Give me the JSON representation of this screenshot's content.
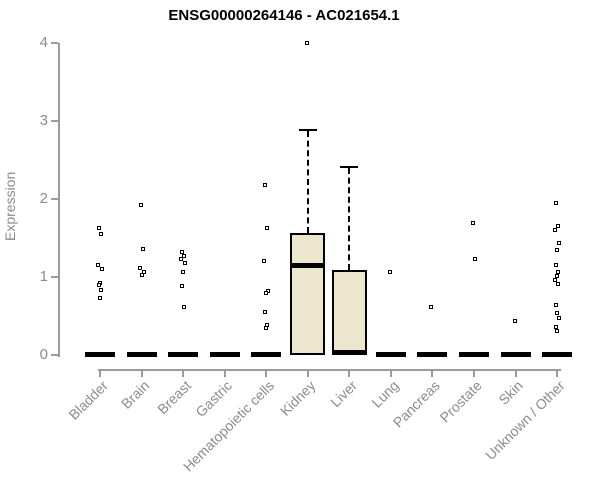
{
  "chart_data": {
    "type": "boxplot",
    "title": "ENSG00000264146 - AC021654.1",
    "xlabel": "",
    "ylabel": "Expression",
    "ylim": [
      0,
      4
    ],
    "yticks": [
      "0",
      "1",
      "2",
      "3",
      "4"
    ],
    "grid": false,
    "legend": false,
    "colors": {
      "box_fill": "#ECE6CD",
      "box_stroke": "#000000",
      "point_color": "#000000",
      "axis_color": "#9B9B9B",
      "tick_label_color": "#8C8C8C",
      "title_color": "#000000"
    },
    "categories": [
      {
        "label": "Bladder",
        "points": [
          1.63,
          1.55,
          1.15,
          1.1,
          0.92,
          0.9,
          0.83,
          0.73
        ],
        "zero_bar": true,
        "box": null
      },
      {
        "label": "Brain",
        "points": [
          1.92,
          1.36,
          1.12,
          1.07,
          1.02
        ],
        "zero_bar": true,
        "box": null
      },
      {
        "label": "Breast",
        "points": [
          1.32,
          1.27,
          1.23,
          1.18,
          1.06,
          0.88,
          0.62
        ],
        "zero_bar": true,
        "box": null
      },
      {
        "label": "Gastric",
        "points": [],
        "zero_bar": true,
        "box": null
      },
      {
        "label": "Hematopoietic cells",
        "points": [
          2.18,
          1.63,
          1.21,
          0.82,
          0.79,
          0.55,
          0.38,
          0.35
        ],
        "zero_bar": true,
        "box": null
      },
      {
        "label": "Kidney",
        "points": [],
        "zero_bar": false,
        "box": {
          "q1": 0,
          "median": 1.15,
          "q3": 1.56,
          "whisker_low": 0,
          "whisker_high": 2.88,
          "outliers": [
            4.0
          ]
        }
      },
      {
        "label": "Liver",
        "points": [],
        "zero_bar": false,
        "box": {
          "q1": 0,
          "median": 0,
          "q3": 1.09,
          "whisker_low": 0,
          "whisker_high": 2.41,
          "outliers": []
        }
      },
      {
        "label": "Lung",
        "points": [
          1.07
        ],
        "zero_bar": true,
        "box": null
      },
      {
        "label": "Pancreas",
        "points": [
          0.62
        ],
        "zero_bar": true,
        "box": null
      },
      {
        "label": "Prostate",
        "points": [
          1.69,
          1.23
        ],
        "zero_bar": true,
        "box": null
      },
      {
        "label": "Skin",
        "points": [
          0.44
        ],
        "zero_bar": true,
        "box": null
      },
      {
        "label": "Unknown / Other",
        "points": [
          1.95,
          1.65,
          1.6,
          1.44,
          1.35,
          1.15,
          1.06,
          1.01,
          0.96,
          0.91,
          0.64,
          0.54,
          0.47,
          0.36,
          0.31
        ],
        "zero_bar": true,
        "box": null
      }
    ]
  }
}
